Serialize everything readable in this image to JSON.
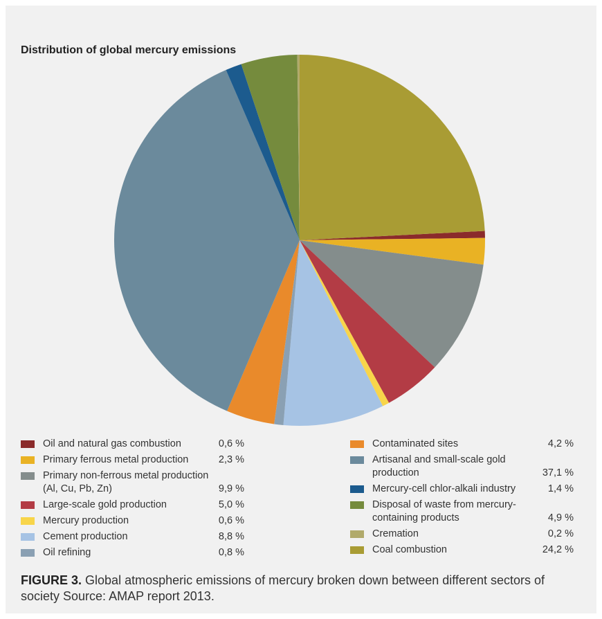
{
  "chart_data": {
    "type": "pie",
    "title": "Distribution of global mercury emissions",
    "categories": [
      "Oil and natural gas combustion",
      "Primary ferrous metal production",
      "Primary non-ferrous metal production (Al, Cu, Pb, Zn)",
      "Large-scale gold production",
      "Mercury production",
      "Cement production",
      "Oil refining",
      "Contaminated sites",
      "Artisanal and small-scale gold production",
      "Mercury-cell chlor-alkali industry",
      "Disposal of waste from mercury-containing products",
      "Cremation",
      "Coal combustion"
    ],
    "values": [
      0.6,
      2.3,
      9.9,
      5.0,
      0.6,
      8.8,
      0.8,
      4.2,
      37.1,
      1.4,
      4.9,
      0.2,
      24.2
    ],
    "value_labels": [
      "0,6 %",
      "2,3 %",
      "9,9 %",
      "5,0 %",
      "0,6 %",
      "8,8 %",
      "0,8 %",
      "4,2 %",
      "37,1 %",
      "1,4 %",
      "4,9 %",
      "0,2 %",
      "24,2 %"
    ],
    "colors": [
      "#8b2b2b",
      "#e9b224",
      "#848d8c",
      "#b33c45",
      "#f8d54a",
      "#a6c3e4",
      "#8aa0b3",
      "#e98a2b",
      "#6b8a9c",
      "#1c5b8e",
      "#758b3d",
      "#b1aa6b",
      "#a99c34"
    ]
  },
  "caption": {
    "label": "FIGURE 3.",
    "text": "Global atmospheric emissions of mercury broken down between different sectors of society Source: AMAP report 2013."
  }
}
